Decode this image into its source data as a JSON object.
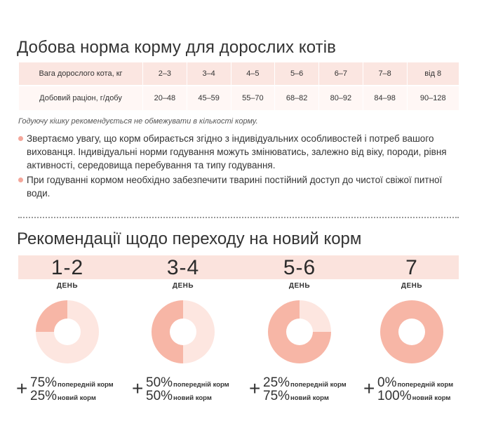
{
  "title": "Добова норма корму для дорослих котів",
  "table": {
    "weight_label": "Вага дорослого кота, кг",
    "ration_label": "Добовий раціон, г/добу",
    "weights": [
      "2–3",
      "3–4",
      "4–5",
      "5–6",
      "6–7",
      "7–8",
      "від 8"
    ],
    "rations": [
      "20–48",
      "45–59",
      "55–70",
      "68–82",
      "80–92",
      "84–98",
      "90–128"
    ]
  },
  "note": "Годуючу кішку рекомендується не обмежувати в кількості корму.",
  "bullets": [
    "Звертаємо увагу, що корм обирається згідно з індивідуальних особливостей і потреб вашого вихованця. Індивідуальні норми годування можуть змінюватись, залежно від віку, породи, рівня активності, середовища перебування та типу годування.",
    "При годуванні кормом необхідно забезпечити тварині постійний доступ до чистої свіжої питної води."
  ],
  "transition": {
    "title": "Рекомендації щодо переходу на новий корм",
    "day_label": "ДЕНЬ",
    "plus": "+",
    "prev_label": "попередній корм",
    "new_label": "новий корм",
    "stages": [
      {
        "days": "1-2",
        "prev": "75%",
        "new": "25%",
        "new_fraction": 0.25
      },
      {
        "days": "3-4",
        "prev": "50%",
        "new": "50%",
        "new_fraction": 0.5
      },
      {
        "days": "5-6",
        "prev": "25%",
        "new": "75%",
        "new_fraction": 0.75
      },
      {
        "days": "7",
        "prev": "0%",
        "new": "100%",
        "new_fraction": 1.0
      }
    ],
    "colors": {
      "prev": "#fde6e0",
      "new": "#f7b6a6"
    }
  }
}
